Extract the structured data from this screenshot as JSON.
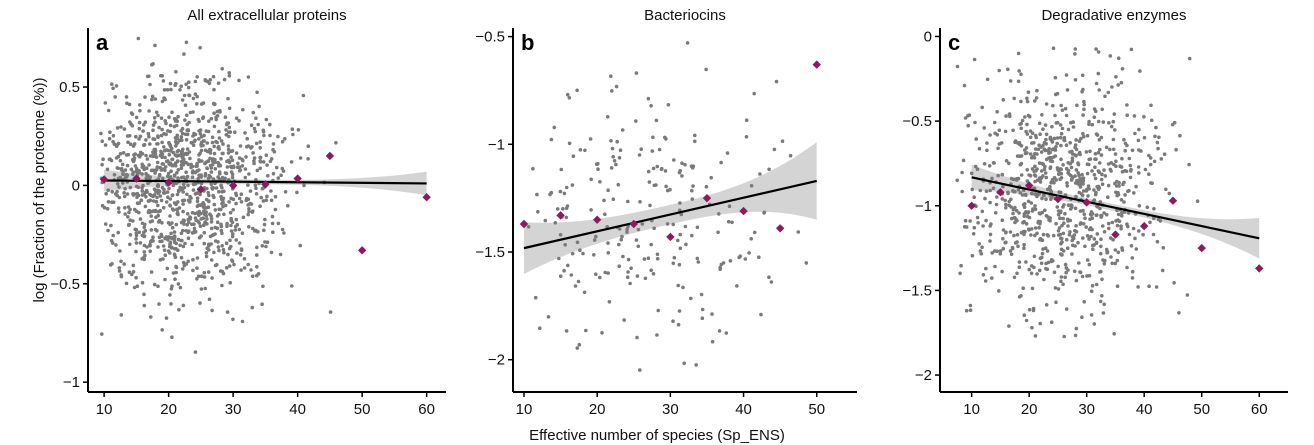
{
  "figure": {
    "ylabel": "log (Fraction of the proteome (%))",
    "xlabel": "Effective number of species (Sp_ENS)"
  },
  "colors": {
    "points": "#7a7a7a",
    "bin_means": "#8e1a5e",
    "fit_line": "#000000",
    "ci_band": "#cfcfcf"
  },
  "chart_data": [
    {
      "type": "scatter",
      "letter": "a",
      "title": "All extracellular proteins",
      "xlim": [
        7.5,
        63
      ],
      "ylim": [
        -1.05,
        0.8
      ],
      "xticks": [
        10,
        20,
        30,
        40,
        50,
        60
      ],
      "yticks": [
        0.5,
        0,
        -0.5,
        -1
      ],
      "ytick_labels": [
        "0.5",
        "0",
        "−0.5",
        "−1"
      ],
      "n_points": 1200,
      "x_center": 22.5,
      "x_spread": 7.5,
      "y_center": 0.0,
      "y_spread": 0.26,
      "x_min": 9.5,
      "x_max": 56,
      "y_min": -1.0,
      "y_max": 0.78,
      "fit": {
        "intercept": 0.028,
        "slope": -0.0003
      },
      "ci_halfwidth": [
        0.055,
        0.012,
        0.06
      ],
      "bin_means": [
        [
          10,
          0.03
        ],
        [
          15,
          0.035
        ],
        [
          20,
          0.015
        ],
        [
          25,
          -0.02
        ],
        [
          30,
          0.0
        ],
        [
          35,
          0.005
        ],
        [
          40,
          0.035
        ],
        [
          45,
          0.15
        ],
        [
          50,
          -0.33
        ],
        [
          60,
          -0.06
        ]
      ]
    },
    {
      "type": "scatter",
      "letter": "b",
      "title": "Bacteriocins",
      "xlim": [
        8.5,
        55.5
      ],
      "ylim": [
        -2.15,
        -0.46
      ],
      "xticks": [
        10,
        20,
        30,
        40,
        50
      ],
      "yticks": [
        -0.5,
        -1,
        -1.5,
        -2
      ],
      "ytick_labels": [
        "−0.5",
        "−1",
        "−1.5",
        "−2"
      ],
      "n_points": 240,
      "x_center": 27,
      "x_spread": 9.5,
      "y_center": -1.38,
      "y_spread": 0.33,
      "x_min": 10,
      "x_max": 51,
      "y_min": -2.1,
      "y_max": -0.5,
      "fit": {
        "intercept": -1.56,
        "slope": 0.0078
      },
      "ci_halfwidth": [
        0.12,
        0.045,
        0.18
      ],
      "bin_means": [
        [
          10,
          -1.37
        ],
        [
          15,
          -1.33
        ],
        [
          20,
          -1.35
        ],
        [
          25,
          -1.37
        ],
        [
          30,
          -1.43
        ],
        [
          35,
          -1.25
        ],
        [
          40,
          -1.31
        ],
        [
          45,
          -1.39
        ],
        [
          50,
          -0.63
        ]
      ]
    },
    {
      "type": "scatter",
      "letter": "c",
      "title": "Degradative enzymes",
      "xlim": [
        4.5,
        65
      ],
      "ylim": [
        -2.1,
        0.05
      ],
      "xticks": [
        10,
        20,
        30,
        40,
        50,
        60
      ],
      "yticks": [
        0,
        -0.5,
        -1,
        -1.5,
        -2
      ],
      "ytick_labels": [
        "0",
        "−0.5",
        "−1",
        "−1.5",
        "−2"
      ],
      "n_points": 900,
      "x_center": 25,
      "x_spread": 8.5,
      "y_center": -0.92,
      "y_spread": 0.34,
      "x_min": 7,
      "x_max": 55,
      "y_min": -1.8,
      "y_max": -0.05,
      "fit": {
        "intercept": -0.76,
        "slope": -0.0072
      },
      "ci_halfwidth": [
        0.075,
        0.02,
        0.12
      ],
      "bin_means": [
        [
          10,
          -1.0
        ],
        [
          15,
          -0.92
        ],
        [
          20,
          -0.88
        ],
        [
          25,
          -0.96
        ],
        [
          30,
          -0.98
        ],
        [
          35,
          -1.17
        ],
        [
          40,
          -1.12
        ],
        [
          45,
          -0.97
        ],
        [
          50,
          -1.25
        ],
        [
          60,
          -1.37
        ]
      ]
    }
  ]
}
